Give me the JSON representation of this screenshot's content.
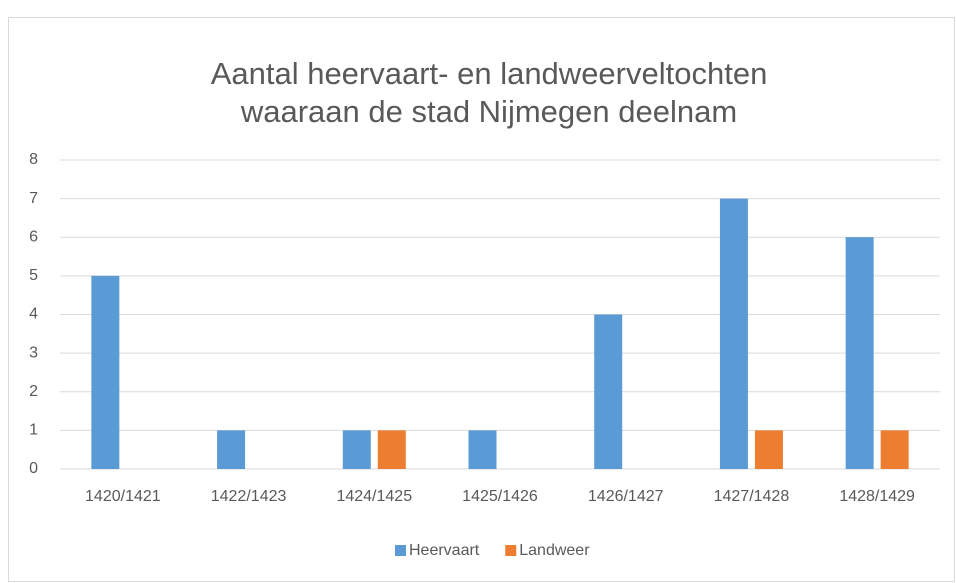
{
  "chart_data": {
    "type": "bar",
    "title": [
      "Aantal heervaart- en landweerveltochten",
      "waaraan de stad Nijmegen deelnam"
    ],
    "categories": [
      "1420/1421",
      "1422/1423",
      "1424/1425",
      "1425/1426",
      "1426/1427",
      "1427/1428",
      "1428/1429"
    ],
    "series": [
      {
        "name": "Heervaart",
        "color": "#5b9bd5",
        "values": [
          5,
          1,
          1,
          1,
          4,
          7,
          6
        ]
      },
      {
        "name": "Landweer",
        "color": "#ed7d31",
        "values": [
          0,
          0,
          1,
          0,
          0,
          1,
          1
        ]
      }
    ],
    "ylim": [
      0,
      8
    ],
    "yticks": [
      0,
      1,
      2,
      3,
      4,
      5,
      6,
      7,
      8
    ],
    "grid": true,
    "legend": "bottom"
  }
}
